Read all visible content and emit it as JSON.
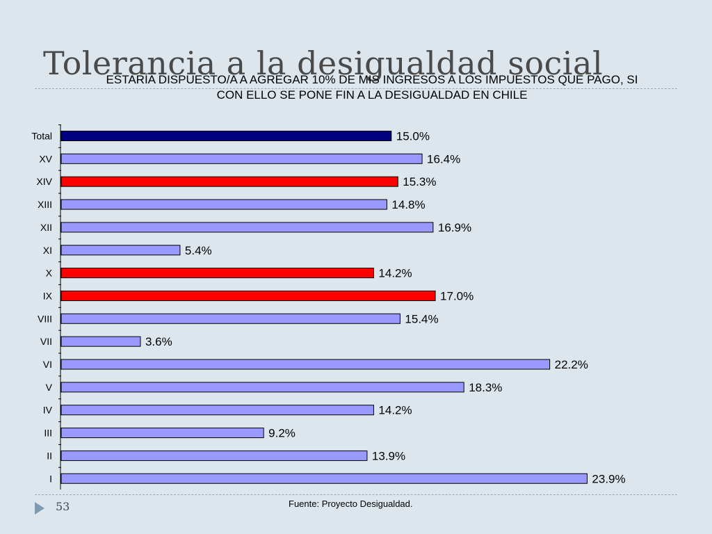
{
  "slide": {
    "title": "Tolerancia a la desigualdad social",
    "page_number": "53",
    "source": "Fuente: Proyecto Desigualdad.",
    "nav_icon": "triangle-arrow-icon"
  },
  "chart_data": {
    "type": "bar",
    "orientation": "horizontal",
    "title": "ESTARÍA DISPUESTO/A A AGREGAR 10% DE MIS INGRESOS A LOS IMPUESTOS QUE PAGO, SI CON ELLO SE PONE FIN A LA DESIGUALDAD EN CHILE",
    "categories": [
      "Total",
      "XV",
      "XIV",
      "XIII",
      "XII",
      "XI",
      "X",
      "IX",
      "VIII",
      "VII",
      "VI",
      "V",
      "IV",
      "III",
      "II",
      "I"
    ],
    "values": [
      15.0,
      16.4,
      15.3,
      14.8,
      16.9,
      5.4,
      14.2,
      17.0,
      15.4,
      3.6,
      22.2,
      18.3,
      14.2,
      9.2,
      13.9,
      23.9
    ],
    "data_labels": [
      "15.0%",
      "16.4%",
      "15.3%",
      "14.8%",
      "16.9%",
      "5.4%",
      "14.2%",
      "17.0%",
      "15.4%",
      "3.6%",
      "22.2%",
      "18.3%",
      "14.2%",
      "9.2%",
      "13.9%",
      "23.9%"
    ],
    "bar_colors": [
      "#000080",
      "#9999ff",
      "#ff0000",
      "#9999ff",
      "#9999ff",
      "#9999ff",
      "#ff0000",
      "#ff0000",
      "#9999ff",
      "#9999ff",
      "#9999ff",
      "#9999ff",
      "#9999ff",
      "#9999ff",
      "#9999ff",
      "#9999ff"
    ],
    "xlim": [
      0,
      25
    ],
    "grid": false,
    "legend": "none"
  }
}
